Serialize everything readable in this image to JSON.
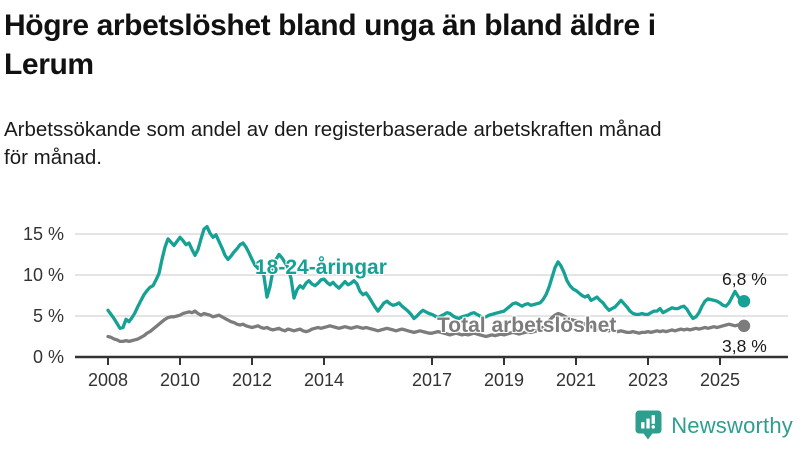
{
  "header": {
    "title_lines": [
      "Högre arbetslöshet bland unga än bland äldre i",
      "Lerum"
    ],
    "subtitle_lines": [
      "Arbetssökande som andel av den registerbaserade arbetskraften månad",
      "för månad."
    ]
  },
  "footer": {
    "brand": "Newsworthy",
    "brand_color": "#2E9E8F"
  },
  "chart_data": {
    "type": "line",
    "title": "Högre arbetslöshet bland unga än bland äldre i Lerum",
    "subtitle": "Arbetssökande som andel av den registerbaserade arbetskraften månad för månad.",
    "x_unit": "month",
    "x_start_year": 2008,
    "x_end": "2025-09",
    "x_tick_years": [
      2008,
      2010,
      2012,
      2014,
      2017,
      2019,
      2021,
      2023,
      2025
    ],
    "x_tick_labels": [
      "2008",
      "2010",
      "2012",
      "2014",
      "2017",
      "2019",
      "2021",
      "2023",
      "2025"
    ],
    "y_ticks": [
      0,
      5,
      10,
      15
    ],
    "y_tick_labels": [
      "0 %",
      "5 %",
      "10 %",
      "15 %"
    ],
    "ylim": [
      0,
      16.5
    ],
    "grid": "horizontal",
    "grid_color": "#DCDCDC",
    "axis_color": "#333333",
    "legend_position": "inline-labels",
    "series": [
      {
        "name": "18-24-åringar",
        "color": "#16A195",
        "end_label": "6,8 %",
        "end_value": 6.8,
        "values": [
          5.7,
          5.2,
          4.7,
          4.1,
          3.5,
          3.6,
          4.6,
          4.3,
          4.8,
          5.4,
          6.2,
          6.9,
          7.6,
          8.1,
          8.5,
          8.7,
          9.4,
          10.2,
          11.9,
          13.4,
          14.4,
          14.0,
          13.6,
          14.1,
          14.6,
          14.2,
          13.7,
          13.9,
          13.1,
          12.4,
          13.1,
          14.4,
          15.6,
          15.9,
          15.1,
          14.6,
          14.9,
          14.1,
          13.3,
          12.4,
          11.9,
          12.3,
          12.8,
          13.2,
          13.7,
          13.9,
          13.4,
          12.7,
          11.9,
          11.2,
          10.8,
          11.2,
          9.8,
          7.3,
          8.6,
          10.6,
          11.9,
          12.5,
          12.1,
          11.5,
          10.9,
          9.6,
          7.2,
          8.2,
          8.7,
          8.4,
          9.0,
          9.3,
          8.9,
          8.7,
          9.0,
          9.4,
          9.5,
          9.1,
          8.8,
          9.1,
          8.7,
          8.4,
          8.8,
          9.2,
          8.8,
          9.0,
          9.3,
          8.9,
          8.0,
          7.6,
          7.8,
          7.3,
          6.7,
          6.1,
          5.6,
          6.1,
          6.6,
          6.8,
          6.5,
          6.3,
          6.4,
          6.6,
          6.2,
          5.9,
          5.6,
          5.2,
          4.7,
          5.0,
          5.4,
          5.7,
          5.5,
          5.3,
          5.2,
          5.0,
          4.8,
          5.0,
          5.2,
          5.4,
          5.3,
          5.0,
          4.8,
          4.7,
          4.9,
          5.0,
          5.1,
          5.3,
          5.4,
          5.2,
          5.0,
          4.8,
          4.9,
          5.1,
          5.2,
          5.3,
          5.4,
          5.5,
          5.6,
          5.9,
          6.2,
          6.5,
          6.6,
          6.4,
          6.2,
          6.4,
          6.5,
          6.3,
          6.4,
          6.5,
          6.6,
          7.0,
          7.6,
          8.5,
          9.7,
          10.9,
          11.6,
          11.1,
          10.3,
          9.3,
          8.7,
          8.3,
          8.1,
          7.8,
          7.5,
          7.3,
          7.5,
          6.9,
          7.1,
          7.3,
          6.9,
          6.6,
          6.1,
          5.7,
          5.9,
          6.1,
          6.5,
          6.9,
          6.5,
          6.1,
          5.6,
          5.3,
          5.2,
          5.2,
          5.3,
          5.2,
          5.2,
          5.4,
          5.6,
          5.6,
          5.9,
          5.4,
          5.6,
          5.8,
          6.0,
          5.9,
          5.9,
          6.1,
          6.2,
          5.8,
          5.2,
          4.7,
          4.9,
          5.4,
          6.2,
          6.8,
          7.1,
          7.0,
          6.9,
          6.8,
          6.6,
          6.3,
          6.2,
          6.6,
          7.3,
          8.0,
          7.4,
          6.9,
          6.8
        ]
      },
      {
        "name": "Total arbetslöshet",
        "color": "#7C7C7C",
        "end_label": "3,8 %",
        "end_value": 3.8,
        "values": [
          2.5,
          2.4,
          2.2,
          2.1,
          1.9,
          1.9,
          2.0,
          1.9,
          2.0,
          2.1,
          2.2,
          2.4,
          2.6,
          2.9,
          3.1,
          3.4,
          3.7,
          4.0,
          4.3,
          4.6,
          4.8,
          4.9,
          4.9,
          5.0,
          5.1,
          5.3,
          5.4,
          5.5,
          5.4,
          5.6,
          5.3,
          5.1,
          5.3,
          5.2,
          5.1,
          4.9,
          5.0,
          5.1,
          4.9,
          4.7,
          4.5,
          4.3,
          4.2,
          4.0,
          3.9,
          4.0,
          3.8,
          3.7,
          3.6,
          3.7,
          3.8,
          3.6,
          3.5,
          3.6,
          3.4,
          3.3,
          3.4,
          3.5,
          3.3,
          3.2,
          3.4,
          3.3,
          3.2,
          3.3,
          3.4,
          3.2,
          3.1,
          3.2,
          3.4,
          3.5,
          3.6,
          3.5,
          3.6,
          3.7,
          3.8,
          3.7,
          3.6,
          3.5,
          3.6,
          3.7,
          3.6,
          3.5,
          3.6,
          3.7,
          3.6,
          3.5,
          3.6,
          3.5,
          3.4,
          3.3,
          3.2,
          3.3,
          3.4,
          3.5,
          3.4,
          3.3,
          3.2,
          3.3,
          3.4,
          3.3,
          3.2,
          3.1,
          3.0,
          3.1,
          3.2,
          3.1,
          3.0,
          2.9,
          2.9,
          3.0,
          3.1,
          3.0,
          2.9,
          2.8,
          2.7,
          2.8,
          2.9,
          2.8,
          2.7,
          2.8,
          2.7,
          2.8,
          2.9,
          2.8,
          2.7,
          2.6,
          2.5,
          2.6,
          2.7,
          2.6,
          2.7,
          2.8,
          2.7,
          2.8,
          2.9,
          3.0,
          2.9,
          2.8,
          2.9,
          3.0,
          3.1,
          3.0,
          3.1,
          3.2,
          3.4,
          3.6,
          3.9,
          4.4,
          4.8,
          5.1,
          5.3,
          5.2,
          5.0,
          4.8,
          4.6,
          4.5,
          4.4,
          4.3,
          4.2,
          4.0,
          3.9,
          3.7,
          3.6,
          3.5,
          3.4,
          3.3,
          3.2,
          3.2,
          3.3,
          3.2,
          3.1,
          3.2,
          3.1,
          3.0,
          3.0,
          3.1,
          3.0,
          2.9,
          3.0,
          3.0,
          3.1,
          3.0,
          3.1,
          3.2,
          3.1,
          3.2,
          3.1,
          3.2,
          3.3,
          3.2,
          3.3,
          3.4,
          3.3,
          3.4,
          3.3,
          3.4,
          3.5,
          3.4,
          3.5,
          3.6,
          3.5,
          3.6,
          3.7,
          3.6,
          3.7,
          3.8,
          3.9,
          4.0,
          3.9,
          3.8,
          3.9,
          3.8,
          3.8
        ]
      }
    ]
  }
}
